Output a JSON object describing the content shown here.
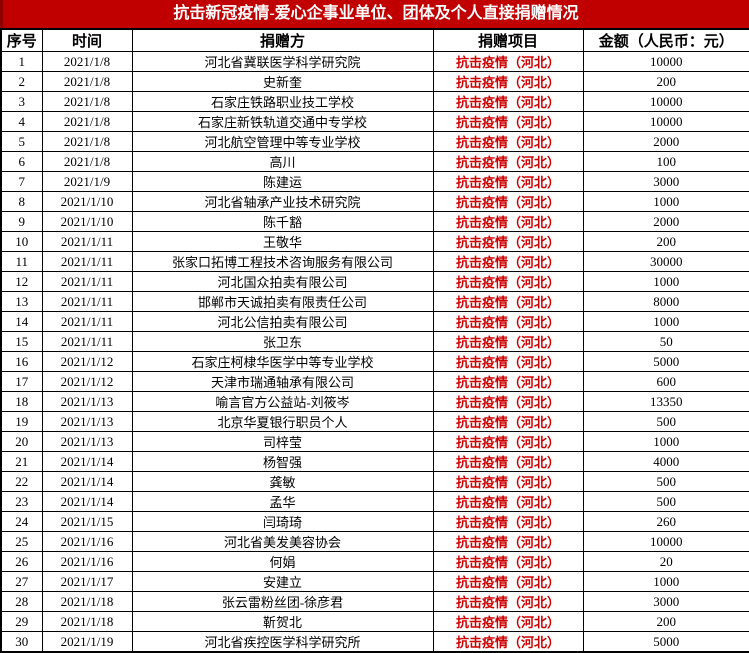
{
  "title": {
    "text": "抗击新冠疫情-爱心企事业单位、团体及个人直接捐赠情况"
  },
  "colors": {
    "title_bg": "#c00000",
    "title_text": "#ffffff",
    "project_text": "#cc0000",
    "grid_line": "#000000"
  },
  "table": {
    "headers": [
      "序号",
      "时间",
      "捐赠方",
      "捐赠项目",
      "金额（人民币：元）"
    ],
    "rows": [
      [
        "1",
        "2021/1/8",
        "河北省冀联医学科学研究院",
        "抗击疫情（河北）",
        "10000"
      ],
      [
        "2",
        "2021/1/8",
        "史新奎",
        "抗击疫情（河北）",
        "200"
      ],
      [
        "3",
        "2021/1/8",
        "石家庄铁路职业技工学校",
        "抗击疫情（河北）",
        "10000"
      ],
      [
        "4",
        "2021/1/8",
        "石家庄新铁轨道交通中专学校",
        "抗击疫情（河北）",
        "10000"
      ],
      [
        "5",
        "2021/1/8",
        "河北航空管理中等专业学校",
        "抗击疫情（河北）",
        "2000"
      ],
      [
        "6",
        "2021/1/8",
        "高川",
        "抗击疫情（河北）",
        "100"
      ],
      [
        "7",
        "2021/1/9",
        "陈建运",
        "抗击疫情（河北）",
        "3000"
      ],
      [
        "8",
        "2021/1/10",
        "河北省轴承产业技术研究院",
        "抗击疫情（河北）",
        "1000"
      ],
      [
        "9",
        "2021/1/10",
        "陈千豁",
        "抗击疫情（河北）",
        "2000"
      ],
      [
        "10",
        "2021/1/11",
        "王敬华",
        "抗击疫情（河北）",
        "200"
      ],
      [
        "11",
        "2021/1/11",
        "张家口拓博工程技术咨询服务有限公司",
        "抗击疫情（河北）",
        "30000"
      ],
      [
        "12",
        "2021/1/11",
        "河北国众拍卖有限公司",
        "抗击疫情（河北）",
        "1000"
      ],
      [
        "13",
        "2021/1/11",
        "邯郸市天诚拍卖有限责任公司",
        "抗击疫情（河北）",
        "8000"
      ],
      [
        "14",
        "2021/1/11",
        "河北公信拍卖有限公司",
        "抗击疫情（河北）",
        "1000"
      ],
      [
        "15",
        "2021/1/11",
        "张卫东",
        "抗击疫情（河北）",
        "50"
      ],
      [
        "16",
        "2021/1/12",
        "石家庄柯棣华医学中等专业学校",
        "抗击疫情（河北）",
        "5000"
      ],
      [
        "17",
        "2021/1/12",
        "天津市瑞通轴承有限公司",
        "抗击疫情（河北）",
        "600"
      ],
      [
        "18",
        "2021/1/13",
        "喻言官方公益站-刘筱岑",
        "抗击疫情（河北）",
        "13350"
      ],
      [
        "19",
        "2021/1/13",
        "北京华夏银行职员个人",
        "抗击疫情（河北）",
        "500"
      ],
      [
        "20",
        "2021/1/13",
        "司梓莹",
        "抗击疫情（河北）",
        "1000"
      ],
      [
        "21",
        "2021/1/14",
        "杨智强",
        "抗击疫情（河北）",
        "4000"
      ],
      [
        "22",
        "2021/1/14",
        "龚敏",
        "抗击疫情（河北）",
        "500"
      ],
      [
        "23",
        "2021/1/14",
        "孟华",
        "抗击疫情（河北）",
        "500"
      ],
      [
        "24",
        "2021/1/15",
        "闫琦琦",
        "抗击疫情（河北）",
        "260"
      ],
      [
        "25",
        "2021/1/16",
        "河北省美发美容协会",
        "抗击疫情（河北）",
        "10000"
      ],
      [
        "26",
        "2021/1/16",
        "何娟",
        "抗击疫情（河北）",
        "20"
      ],
      [
        "27",
        "2021/1/17",
        "安建立",
        "抗击疫情（河北）",
        "1000"
      ],
      [
        "28",
        "2021/1/18",
        "张云雷粉丝团-徐彦君",
        "抗击疫情（河北）",
        "3000"
      ],
      [
        "29",
        "2021/1/18",
        "靳贺北",
        "抗击疫情（河北）",
        "200"
      ],
      [
        "30",
        "2021/1/19",
        "河北省疾控医学科学研究所",
        "抗击疫情（河北）",
        "5000"
      ]
    ]
  }
}
